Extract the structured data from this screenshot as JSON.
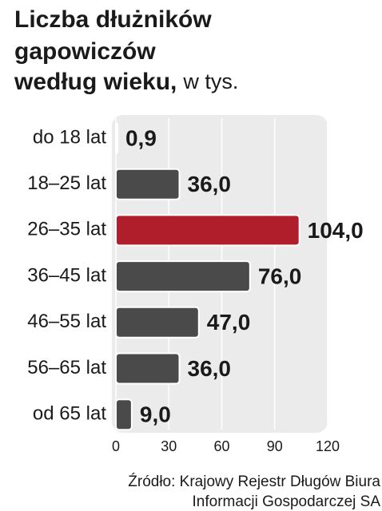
{
  "chart_data": {
    "type": "bar",
    "orientation": "horizontal",
    "title": [
      "Liczba dłużników",
      "gapowiczów",
      "według wieku,"
    ],
    "subtitle": "w tys.",
    "categories": [
      "do 18 lat",
      "18–25 lat",
      "26–35 lat",
      "36–45 lat",
      "46–55 lat",
      "56–65 lat",
      "od 65 lat"
    ],
    "values": [
      0.9,
      36.0,
      104.0,
      76.0,
      47.0,
      36.0,
      9.0
    ],
    "value_labels": [
      "0,9",
      "36,0",
      "104,0",
      "76,0",
      "47,0",
      "36,0",
      "9,0"
    ],
    "colors": [
      "#4a4a4a",
      "#4a4a4a",
      "#b01e2c",
      "#4a4a4a",
      "#4a4a4a",
      "#4a4a4a",
      "#4a4a4a"
    ],
    "xlim": [
      0,
      120
    ],
    "xticks": [
      0,
      30,
      60,
      90,
      120
    ],
    "grid": true,
    "source": [
      "Źródło: Krajowy Rejestr Długów Biura",
      "Informacji Gospodarczej SA"
    ]
  }
}
